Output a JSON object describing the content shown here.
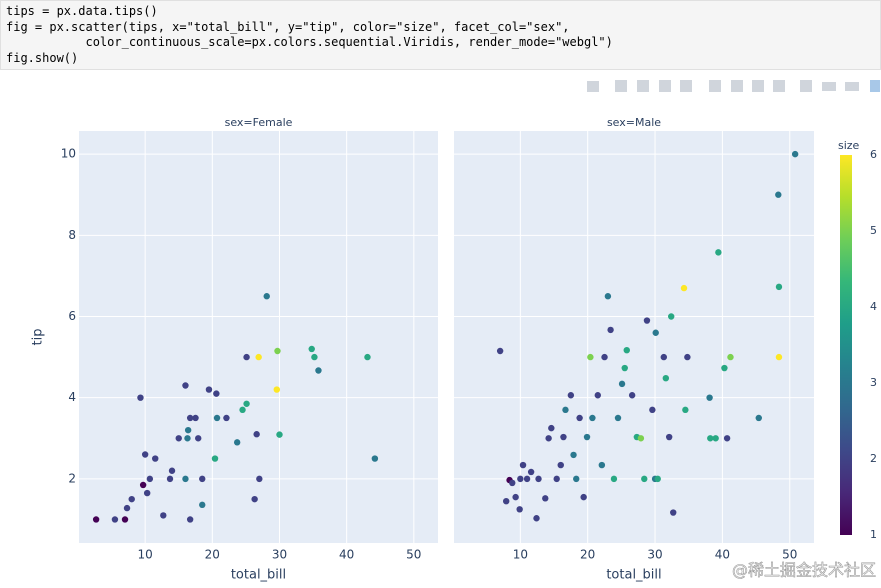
{
  "code": [
    "tips = px.data.tips()",
    "fig = px.scatter(tips, x=\"total_bill\", y=\"tip\", color=\"size\", facet_col=\"sex\",",
    "           color_continuous_scale=px.colors.sequential.Viridis, render_mode=\"webgl\")",
    "fig.show()"
  ],
  "chart_data": [
    {
      "type": "scatter",
      "title": "sex=Female",
      "xlabel": "total_bill",
      "ylabel": "tip",
      "x": [
        2.7,
        5.5,
        7,
        7.3,
        8,
        9.3,
        9.7,
        10,
        10.3,
        10.7,
        11.5,
        12.7,
        13.7,
        14,
        15,
        16,
        16,
        16.3,
        16.4,
        16.7,
        16.7,
        17.5,
        17.9,
        18.5,
        18.5,
        19.5,
        20.4,
        20.6,
        20.7,
        22.1,
        23.7,
        24.5,
        25.1,
        25.1,
        26.6,
        26.3,
        27,
        26.9,
        28.1,
        29.6,
        29.7,
        30,
        34.8,
        35.2,
        35.8,
        43.1,
        44.2
      ],
      "values": [
        1,
        1,
        1,
        1.28,
        1.5,
        4,
        1.85,
        2.6,
        1.65,
        2,
        2.5,
        1.1,
        2,
        2.2,
        3,
        4.3,
        2,
        3,
        3.2,
        3.5,
        1,
        3.5,
        3,
        2,
        1.36,
        4.2,
        2.5,
        4.1,
        3.5,
        3.5,
        2.9,
        3.7,
        3.85,
        5,
        3.1,
        1.5,
        2,
        5,
        6.5,
        4.2,
        5.15,
        3.09,
        5.2,
        5,
        4.67,
        5,
        2.5
      ],
      "size": [
        1,
        2,
        1,
        2,
        2,
        2,
        1,
        2,
        2,
        2,
        2,
        2,
        2,
        2,
        2,
        2,
        3,
        3,
        3,
        2,
        2,
        2,
        2,
        2,
        3,
        2,
        4,
        2,
        3,
        2,
        3,
        4,
        4,
        2,
        2,
        2,
        2,
        6,
        3,
        6,
        5,
        4,
        4,
        4,
        3,
        4,
        3
      ],
      "xlim": [
        0.15,
        53.6
      ],
      "ylim": [
        0.42,
        10.57
      ],
      "xticks": [
        10,
        20,
        30,
        40,
        50
      ],
      "yticks": [
        2,
        4,
        6,
        8,
        10
      ],
      "grid": true
    },
    {
      "type": "scatter",
      "title": "sex=Male",
      "xlabel": "total_bill",
      "x": [
        7,
        7.9,
        8.4,
        8.8,
        9.3,
        9.9,
        10,
        10.4,
        11,
        11.6,
        12.4,
        12.7,
        13.7,
        14.2,
        14.6,
        15.4,
        16,
        16.4,
        16.7,
        17.5,
        17.9,
        18.3,
        18.8,
        19.4,
        19.9,
        20.4,
        20.7,
        21.5,
        22.1,
        22.5,
        23,
        23.4,
        23.9,
        24.5,
        25.1,
        25.5,
        25.8,
        26.6,
        27.3,
        27.9,
        28.4,
        28.8,
        29.6,
        30,
        30.1,
        30.4,
        31.3,
        31.6,
        32.1,
        32.4,
        32.7,
        34.3,
        34.5,
        34.8,
        38.1,
        38.2,
        39,
        39.4,
        40.3,
        40.7,
        41.2,
        45.4,
        48.4,
        48.4,
        48.3,
        50.8
      ],
      "values": [
        5.15,
        1.45,
        1.97,
        1.9,
        1.55,
        1.25,
        2,
        2.34,
        2,
        2.17,
        1.03,
        2,
        1.52,
        3,
        3.25,
        2,
        2.34,
        3.03,
        3.7,
        4.06,
        2.59,
        2,
        3.5,
        1.55,
        3.03,
        5,
        3.5,
        4.06,
        2.34,
        5,
        6.5,
        5.67,
        2,
        3.5,
        4.34,
        4.73,
        5.17,
        4.06,
        3.03,
        3,
        2,
        5.9,
        3.7,
        2,
        5.6,
        2,
        5,
        4.48,
        3.03,
        6,
        1.17,
        6.7,
        3.7,
        5,
        4,
        3,
        3,
        7.58,
        4.73,
        3,
        5,
        3.5,
        5,
        6.73,
        9,
        10
      ],
      "size": [
        2,
        2,
        1,
        2,
        2,
        2,
        2,
        2,
        2,
        2,
        2,
        2,
        2,
        2,
        2,
        2,
        2,
        2,
        3,
        2,
        3,
        3,
        2,
        2,
        3,
        5,
        3,
        2,
        3,
        2,
        3,
        2,
        4,
        3,
        3,
        4,
        4,
        2,
        4,
        5,
        4,
        2,
        2,
        3,
        3,
        4,
        2,
        4,
        2,
        4,
        2,
        6,
        4,
        2,
        3,
        4,
        4,
        4,
        4,
        2,
        5,
        3,
        6,
        4,
        3,
        3
      ],
      "xlim": [
        0.15,
        53.6
      ],
      "ylim": [
        0.42,
        10.57
      ],
      "xticks": [
        10,
        20,
        30,
        40,
        50
      ],
      "yticks": [
        2,
        4,
        6,
        8,
        10
      ],
      "grid": true
    }
  ],
  "coloraxis": {
    "title": "size",
    "lim": [
      1,
      6
    ],
    "ticks": [
      1,
      2,
      3,
      4,
      5,
      6
    ],
    "colorscale": [
      [
        0,
        "#440154"
      ],
      [
        0.111,
        "#482878"
      ],
      [
        0.222,
        "#3e4989"
      ],
      [
        0.333,
        "#31688e"
      ],
      [
        0.444,
        "#26828e"
      ],
      [
        0.556,
        "#1f9e89"
      ],
      [
        0.667,
        "#35b779"
      ],
      [
        0.778,
        "#6ece58"
      ],
      [
        0.889,
        "#b5de2b"
      ],
      [
        1,
        "#fde725"
      ]
    ]
  },
  "watermark": "@稀土掘金技术社区"
}
